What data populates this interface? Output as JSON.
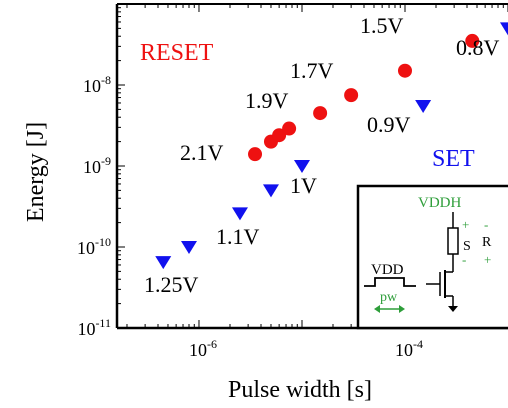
{
  "chart_data": {
    "type": "scatter",
    "xlabel": "Pulse width [s]",
    "ylabel": "Energy [J]",
    "xscale": "log",
    "yscale": "log",
    "xlim": [
      1.6e-07,
      0.001
    ],
    "ylim": [
      1e-11,
      1e-07
    ],
    "x_ticks": [
      "10-6",
      "10-4"
    ],
    "y_ticks": [
      "10-11",
      "10-10",
      "10-9",
      "10-8"
    ],
    "series": [
      {
        "name": "RESET",
        "marker": "circle",
        "color": "#ee1111",
        "points": [
          {
            "x": 3.5e-06,
            "y": 1.4e-09
          },
          {
            "x": 5e-06,
            "y": 2e-09
          },
          {
            "x": 6e-06,
            "y": 2.4e-09
          },
          {
            "x": 7.5e-06,
            "y": 2.9e-09
          },
          {
            "x": 1.5e-05,
            "y": 4.5e-09
          },
          {
            "x": 3e-05,
            "y": 7.5e-09
          },
          {
            "x": 0.0001,
            "y": 1.5e-08
          },
          {
            "x": 0.00045,
            "y": 3.5e-08
          }
        ]
      },
      {
        "name": "SET",
        "marker": "triangle-down",
        "color": "#1111ee",
        "points": [
          {
            "x": 4.5e-07,
            "y": 6.5e-11
          },
          {
            "x": 8e-07,
            "y": 1e-10
          },
          {
            "x": 2.5e-06,
            "y": 2.6e-10
          },
          {
            "x": 5e-06,
            "y": 5e-10
          },
          {
            "x": 1e-05,
            "y": 1e-09
          },
          {
            "x": 0.00015,
            "y": 5.5e-09
          },
          {
            "x": 0.001,
            "y": 5e-08
          }
        ]
      }
    ],
    "annotations": {
      "reset_voltages": [
        "2.1V",
        "1.9V",
        "1.7V",
        "1.5V"
      ],
      "set_voltages": [
        "1.25V",
        "1.1V",
        "1V",
        "0.9V",
        "0.8V"
      ]
    },
    "legend": {
      "reset": "RESET",
      "set": "SET",
      "placement": "in-plot"
    }
  },
  "inset": {
    "vddh": "VDDH",
    "vdd": "VDD",
    "pw": "pw",
    "s": "S",
    "r": "R",
    "plus_left": "+",
    "minus_left": "-",
    "minus_right": "-",
    "plus_right": "+"
  },
  "colors": {
    "reset": "#ee1111",
    "set": "#1111ee",
    "inset_green": "#2e9e3a",
    "axis": "#000000"
  }
}
